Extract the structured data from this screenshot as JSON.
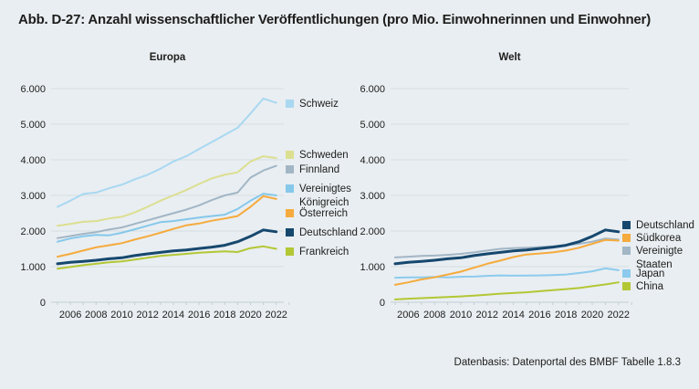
{
  "page": {
    "title": "Abb. D-27: Anzahl wissenschaftlicher Veröffentlichungen (pro Mio. Einwohnerinnen und Einwohner)",
    "footer": "Datenbasis: Datenportal des BMBF Tabelle 1.8.3"
  },
  "colors": {
    "background": "#e9eef2",
    "text": "#1d1d1b",
    "grid": "#d5dde2",
    "axis": "#c3cdd4",
    "schweiz": "#a9d8f1",
    "schweden": "#dcdf90",
    "finnland": "#a2b6c5",
    "vereinigtes_koenigreich": "#85c8ea",
    "oesterreich": "#f5ab3d",
    "deutschland": "#16486e",
    "frankreich": "#b3c734",
    "suedkorea": "#f5ab3d",
    "vereinigte_staaten": "#a2b6c5",
    "japan": "#8ccbed",
    "china": "#b3c734"
  },
  "chart_data": [
    {
      "type": "line",
      "title": "Europa",
      "x": [
        2005,
        2006,
        2007,
        2008,
        2009,
        2010,
        2011,
        2012,
        2013,
        2014,
        2015,
        2016,
        2017,
        2018,
        2019,
        2020,
        2021,
        2022
      ],
      "x_tick_labels": [
        "2006",
        "2008",
        "2010",
        "2012",
        "2014",
        "2016",
        "2018",
        "2020",
        "2022"
      ],
      "ylim": [
        0,
        6000
      ],
      "y_ticks": [
        0,
        1000,
        2000,
        3000,
        4000,
        5000,
        6000
      ],
      "y_tick_labels": [
        "0",
        "1.000",
        "2.000",
        "3.000",
        "4.000",
        "5.000",
        "6.000"
      ],
      "grid": true,
      "legend_position": "right",
      "series": [
        {
          "name": "Schweiz",
          "color_key": "schweiz",
          "emphasis": false,
          "legend_top": 107,
          "values": [
            2680,
            2850,
            3040,
            3080,
            3200,
            3300,
            3450,
            3580,
            3750,
            3950,
            4100,
            4300,
            4500,
            4700,
            4900,
            5300,
            5720,
            5600
          ]
        },
        {
          "name": "Schweden",
          "color_key": "schweden",
          "emphasis": false,
          "legend_top": 163,
          "values": [
            2150,
            2200,
            2260,
            2280,
            2350,
            2400,
            2520,
            2680,
            2850,
            3000,
            3150,
            3320,
            3480,
            3580,
            3650,
            3950,
            4100,
            4050
          ]
        },
        {
          "name": "Finnland",
          "color_key": "finnland",
          "emphasis": false,
          "legend_top": 179,
          "values": [
            1800,
            1860,
            1920,
            1970,
            2040,
            2100,
            2200,
            2300,
            2400,
            2500,
            2600,
            2720,
            2870,
            3000,
            3080,
            3500,
            3700,
            3830
          ]
        },
        {
          "name": "Vereinigtes Königreich",
          "color_key": "vereinigtes_koenigreich",
          "emphasis": false,
          "legend_top": 200,
          "values": [
            1700,
            1790,
            1850,
            1890,
            1880,
            1950,
            2050,
            2150,
            2250,
            2280,
            2330,
            2380,
            2420,
            2460,
            2620,
            2850,
            3050,
            3000
          ]
        },
        {
          "name": "Österreich",
          "color_key": "oesterreich",
          "emphasis": false,
          "legend_top": 227,
          "values": [
            1280,
            1360,
            1450,
            1540,
            1600,
            1660,
            1760,
            1850,
            1950,
            2060,
            2160,
            2210,
            2290,
            2350,
            2420,
            2680,
            2980,
            2900
          ]
        },
        {
          "name": "Frankreich",
          "color_key": "frankreich",
          "emphasis": false,
          "legend_top": 269,
          "values": [
            940,
            990,
            1040,
            1080,
            1120,
            1150,
            1200,
            1250,
            1300,
            1330,
            1360,
            1390,
            1410,
            1430,
            1410,
            1520,
            1570,
            1500
          ]
        },
        {
          "name": "Deutschland",
          "color_key": "deutschland",
          "emphasis": true,
          "legend_top": 248,
          "values": [
            1080,
            1120,
            1150,
            1180,
            1220,
            1250,
            1310,
            1360,
            1400,
            1440,
            1470,
            1510,
            1550,
            1600,
            1700,
            1850,
            2030,
            1980
          ]
        }
      ]
    },
    {
      "type": "line",
      "title": "Welt",
      "x": [
        2005,
        2006,
        2007,
        2008,
        2009,
        2010,
        2011,
        2012,
        2013,
        2014,
        2015,
        2016,
        2017,
        2018,
        2019,
        2020,
        2021,
        2022
      ],
      "x_tick_labels": [
        "2006",
        "2008",
        "2010",
        "2012",
        "2014",
        "2016",
        "2018",
        "2020",
        "2022"
      ],
      "ylim": [
        0,
        6000
      ],
      "y_ticks": [
        0,
        1000,
        2000,
        3000,
        4000,
        5000,
        6000
      ],
      "y_tick_labels": [
        "0",
        "1.000",
        "2.000",
        "3.000",
        "4.000",
        "5.000",
        "6.000"
      ],
      "grid": true,
      "legend_position": "right",
      "series": [
        {
          "name": "Vereinigte Staaten",
          "color_key": "vereinigte_staaten",
          "emphasis": false,
          "legend_top": 268,
          "values": [
            1260,
            1280,
            1300,
            1310,
            1330,
            1360,
            1400,
            1450,
            1500,
            1520,
            1530,
            1550,
            1570,
            1600,
            1640,
            1700,
            1790,
            1760
          ]
        },
        {
          "name": "Japan",
          "color_key": "japan",
          "emphasis": false,
          "legend_top": 293,
          "values": [
            690,
            700,
            700,
            710,
            700,
            715,
            720,
            740,
            755,
            745,
            750,
            755,
            765,
            780,
            820,
            870,
            950,
            900
          ]
        },
        {
          "name": "China",
          "color_key": "china",
          "emphasis": false,
          "legend_top": 307,
          "values": [
            80,
            100,
            115,
            130,
            150,
            165,
            185,
            210,
            240,
            260,
            280,
            310,
            340,
            370,
            400,
            450,
            500,
            560
          ]
        },
        {
          "name": "Südkorea",
          "color_key": "suedkorea",
          "emphasis": false,
          "legend_top": 254,
          "values": [
            490,
            560,
            640,
            700,
            780,
            860,
            970,
            1080,
            1170,
            1270,
            1340,
            1370,
            1400,
            1450,
            1530,
            1640,
            1750,
            1730
          ]
        },
        {
          "name": "Deutschland",
          "color_key": "deutschland",
          "emphasis": true,
          "legend_top": 240,
          "values": [
            1080,
            1120,
            1150,
            1180,
            1220,
            1250,
            1310,
            1360,
            1400,
            1440,
            1470,
            1510,
            1550,
            1600,
            1700,
            1850,
            2030,
            1980
          ]
        }
      ]
    }
  ]
}
